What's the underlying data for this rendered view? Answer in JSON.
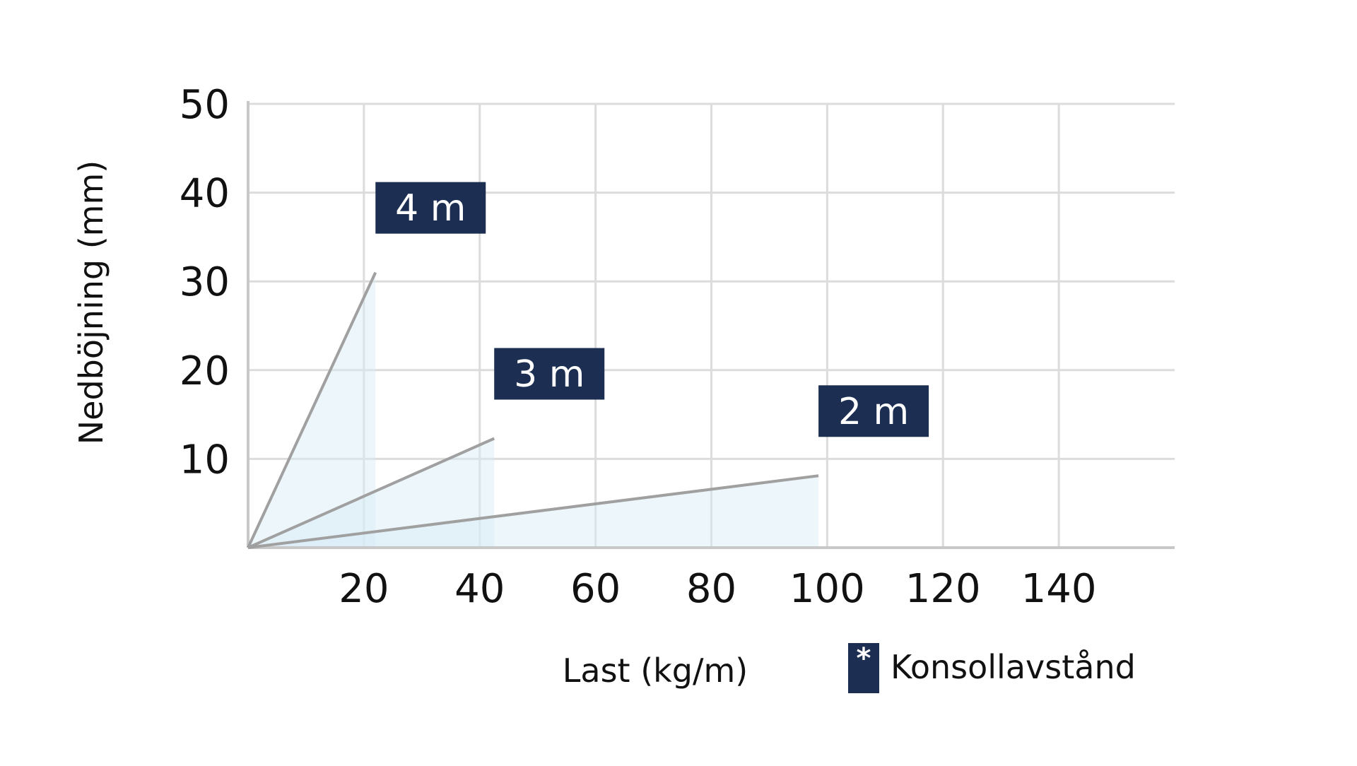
{
  "chart_data": {
    "type": "line",
    "title": "",
    "xlabel": "Last (kg/m)",
    "ylabel": "Nedböjning (mm)",
    "xlim": [
      0,
      160
    ],
    "ylim": [
      0,
      50
    ],
    "x_ticks": [
      20,
      40,
      60,
      80,
      100,
      120,
      140
    ],
    "y_ticks": [
      10,
      20,
      30,
      40,
      50
    ],
    "grid": true,
    "area_fill": true,
    "series": [
      {
        "name": "4 m",
        "x": [
          0,
          22
        ],
        "y": [
          0,
          31
        ]
      },
      {
        "name": "3 m",
        "x": [
          0,
          42.5
        ],
        "y": [
          0,
          12.3
        ]
      },
      {
        "name": "2 m",
        "x": [
          0,
          98.5
        ],
        "y": [
          0,
          8.1
        ]
      }
    ],
    "legend": {
      "marker": "*",
      "label": "Konsollavstånd",
      "placement": "bottom-right"
    }
  },
  "colors": {
    "grid": "#dcdcdc",
    "axis": "#c8c8c8",
    "line": "#a0a0a0",
    "fill": "#d8eaf6",
    "label_bg": "#1c2f52",
    "label_text": "#ffffff",
    "text": "#111111"
  }
}
